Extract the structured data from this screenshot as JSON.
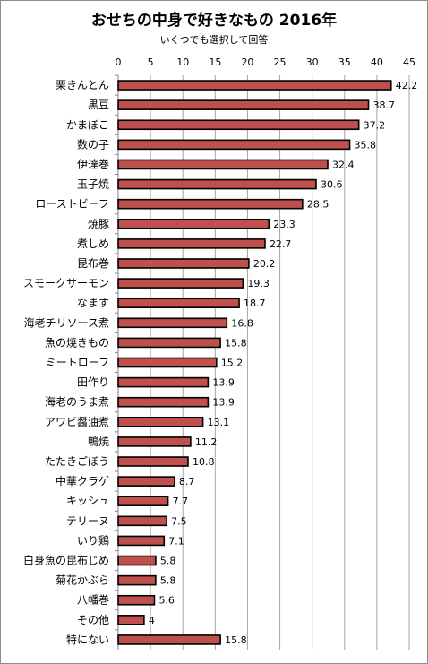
{
  "chart_data": {
    "type": "bar",
    "orientation": "horizontal",
    "title": "おせちの中身で好きなもの 2016年",
    "subtitle": "いくつでも選択して回答",
    "categories": [
      "栗きんとん",
      "黒豆",
      "かまぼこ",
      "数の子",
      "伊達巻",
      "玉子焼",
      "ローストビーフ",
      "焼豚",
      "煮しめ",
      "昆布巻",
      "スモークサーモン",
      "なます",
      "海老チリソース煮",
      "魚の焼きもの",
      "ミートローフ",
      "田作り",
      "海老のうま煮",
      "アワビ醤油煮",
      "鴨焼",
      "たたきごぼう",
      "中華クラゲ",
      "キッシュ",
      "テリーヌ",
      "いり鶏",
      "白身魚の昆布じめ",
      "菊花かぶら",
      "八幡巻",
      "その他",
      "特にない"
    ],
    "values": [
      42.2,
      38.7,
      37.2,
      35.8,
      32.4,
      30.6,
      28.5,
      23.3,
      22.7,
      20.2,
      19.3,
      18.7,
      16.8,
      15.8,
      15.2,
      13.9,
      13.9,
      13.1,
      11.2,
      10.8,
      8.7,
      7.7,
      7.5,
      7.1,
      5.8,
      5.8,
      5.6,
      4,
      15.8
    ],
    "xlim": [
      0,
      45
    ],
    "xticks": [
      0,
      5,
      10,
      15,
      20,
      25,
      30,
      35,
      40,
      45
    ],
    "x_axis_position": "top",
    "grid": true,
    "bar_color": "#c0504d",
    "bar_edge_color": "#000000"
  }
}
